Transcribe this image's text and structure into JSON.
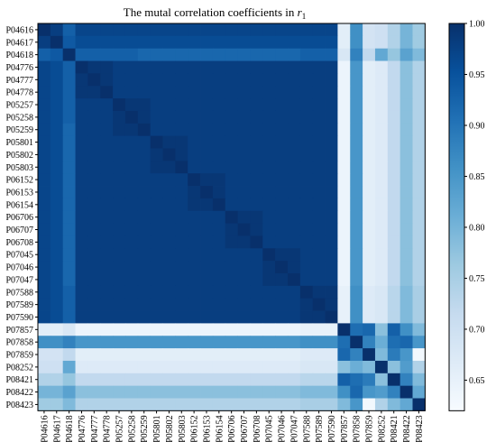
{
  "chart_data": {
    "type": "heatmap",
    "title": "The mutal correlation coefficients in ",
    "title_math": "r",
    "title_sub": "1",
    "labels": [
      "P04616",
      "P04617",
      "P04618",
      "P04776",
      "P04777",
      "P04778",
      "P05257",
      "P05258",
      "P05259",
      "P05801",
      "P05802",
      "P05803",
      "P06152",
      "P06153",
      "P06154",
      "P06706",
      "P06707",
      "P06708",
      "P07045",
      "P07046",
      "P07047",
      "P07588",
      "P07589",
      "P07590",
      "P07857",
      "P07858",
      "P07859",
      "P08252",
      "P08421",
      "P08422",
      "P08423"
    ],
    "zlim": [
      0.62,
      1.0
    ],
    "colorbar_ticks": [
      0.65,
      0.7,
      0.75,
      0.8,
      0.85,
      0.9,
      0.95,
      1.0
    ],
    "colorbar_tick_labels": [
      "0.65",
      "0.70",
      "0.75",
      "0.80",
      "0.85",
      "0.90",
      "0.95",
      "1.00"
    ],
    "colormap": [
      "#f7fbff",
      "#deebf7",
      "#c6dbef",
      "#9ecae1",
      "#6baed6",
      "#4292c6",
      "#2171b5",
      "#08519c",
      "#08306b"
    ],
    "values": [
      [
        1.0,
        0.98,
        0.93,
        0.97,
        0.97,
        0.97,
        0.97,
        0.97,
        0.97,
        0.97,
        0.97,
        0.97,
        0.97,
        0.97,
        0.97,
        0.97,
        0.97,
        0.97,
        0.97,
        0.97,
        0.97,
        0.97,
        0.97,
        0.97,
        0.66,
        0.86,
        0.69,
        0.7,
        0.74,
        0.8,
        0.76
      ],
      [
        0.98,
        1.0,
        0.94,
        0.96,
        0.96,
        0.96,
        0.96,
        0.96,
        0.96,
        0.96,
        0.96,
        0.96,
        0.96,
        0.96,
        0.96,
        0.96,
        0.96,
        0.96,
        0.96,
        0.96,
        0.96,
        0.96,
        0.96,
        0.96,
        0.66,
        0.86,
        0.69,
        0.7,
        0.74,
        0.8,
        0.76
      ],
      [
        0.93,
        0.94,
        1.0,
        0.93,
        0.93,
        0.93,
        0.93,
        0.93,
        0.92,
        0.92,
        0.92,
        0.92,
        0.92,
        0.92,
        0.92,
        0.92,
        0.92,
        0.92,
        0.92,
        0.92,
        0.92,
        0.93,
        0.93,
        0.93,
        0.68,
        0.88,
        0.72,
        0.82,
        0.77,
        0.83,
        0.79
      ],
      [
        0.97,
        0.96,
        0.93,
        1.0,
        0.99,
        0.99,
        0.98,
        0.98,
        0.98,
        0.98,
        0.98,
        0.98,
        0.98,
        0.98,
        0.98,
        0.98,
        0.98,
        0.98,
        0.98,
        0.98,
        0.98,
        0.98,
        0.98,
        0.98,
        0.64,
        0.85,
        0.66,
        0.67,
        0.72,
        0.78,
        0.74
      ],
      [
        0.97,
        0.96,
        0.93,
        0.99,
        1.0,
        0.99,
        0.98,
        0.98,
        0.98,
        0.98,
        0.98,
        0.98,
        0.98,
        0.98,
        0.98,
        0.98,
        0.98,
        0.98,
        0.98,
        0.98,
        0.98,
        0.98,
        0.98,
        0.98,
        0.64,
        0.85,
        0.66,
        0.67,
        0.72,
        0.78,
        0.74
      ],
      [
        0.97,
        0.96,
        0.93,
        0.99,
        0.99,
        1.0,
        0.98,
        0.98,
        0.98,
        0.98,
        0.98,
        0.98,
        0.98,
        0.98,
        0.98,
        0.98,
        0.98,
        0.98,
        0.98,
        0.98,
        0.98,
        0.98,
        0.98,
        0.98,
        0.64,
        0.85,
        0.66,
        0.67,
        0.72,
        0.78,
        0.74
      ],
      [
        0.97,
        0.96,
        0.93,
        0.98,
        0.98,
        0.98,
        1.0,
        0.99,
        0.99,
        0.98,
        0.98,
        0.98,
        0.98,
        0.98,
        0.98,
        0.98,
        0.98,
        0.98,
        0.98,
        0.98,
        0.98,
        0.98,
        0.98,
        0.98,
        0.64,
        0.85,
        0.66,
        0.67,
        0.72,
        0.78,
        0.74
      ],
      [
        0.97,
        0.96,
        0.93,
        0.98,
        0.98,
        0.98,
        0.99,
        1.0,
        0.99,
        0.98,
        0.98,
        0.98,
        0.98,
        0.98,
        0.98,
        0.98,
        0.98,
        0.98,
        0.98,
        0.98,
        0.98,
        0.98,
        0.98,
        0.98,
        0.64,
        0.85,
        0.66,
        0.67,
        0.72,
        0.78,
        0.74
      ],
      [
        0.97,
        0.96,
        0.92,
        0.98,
        0.98,
        0.98,
        0.99,
        0.99,
        1.0,
        0.98,
        0.98,
        0.98,
        0.98,
        0.98,
        0.98,
        0.98,
        0.98,
        0.98,
        0.98,
        0.98,
        0.98,
        0.98,
        0.98,
        0.98,
        0.64,
        0.85,
        0.66,
        0.67,
        0.72,
        0.78,
        0.74
      ],
      [
        0.97,
        0.96,
        0.92,
        0.98,
        0.98,
        0.98,
        0.98,
        0.98,
        0.98,
        1.0,
        0.99,
        0.99,
        0.98,
        0.98,
        0.98,
        0.98,
        0.98,
        0.98,
        0.98,
        0.98,
        0.98,
        0.98,
        0.98,
        0.98,
        0.64,
        0.85,
        0.66,
        0.67,
        0.72,
        0.78,
        0.74
      ],
      [
        0.97,
        0.96,
        0.92,
        0.98,
        0.98,
        0.98,
        0.98,
        0.98,
        0.98,
        0.99,
        1.0,
        0.99,
        0.98,
        0.98,
        0.98,
        0.98,
        0.98,
        0.98,
        0.98,
        0.98,
        0.98,
        0.98,
        0.98,
        0.98,
        0.64,
        0.85,
        0.66,
        0.67,
        0.72,
        0.78,
        0.74
      ],
      [
        0.97,
        0.96,
        0.92,
        0.98,
        0.98,
        0.98,
        0.98,
        0.98,
        0.98,
        0.99,
        0.99,
        1.0,
        0.98,
        0.98,
        0.98,
        0.98,
        0.98,
        0.98,
        0.98,
        0.98,
        0.98,
        0.98,
        0.98,
        0.98,
        0.64,
        0.85,
        0.66,
        0.67,
        0.72,
        0.78,
        0.74
      ],
      [
        0.97,
        0.96,
        0.92,
        0.98,
        0.98,
        0.98,
        0.98,
        0.98,
        0.98,
        0.98,
        0.98,
        0.98,
        1.0,
        0.99,
        0.99,
        0.98,
        0.98,
        0.98,
        0.98,
        0.98,
        0.98,
        0.98,
        0.98,
        0.98,
        0.64,
        0.85,
        0.66,
        0.67,
        0.72,
        0.78,
        0.74
      ],
      [
        0.97,
        0.96,
        0.92,
        0.98,
        0.98,
        0.98,
        0.98,
        0.98,
        0.98,
        0.98,
        0.98,
        0.98,
        0.99,
        1.0,
        0.99,
        0.98,
        0.98,
        0.98,
        0.98,
        0.98,
        0.98,
        0.98,
        0.98,
        0.98,
        0.64,
        0.85,
        0.66,
        0.67,
        0.72,
        0.78,
        0.74
      ],
      [
        0.97,
        0.96,
        0.92,
        0.98,
        0.98,
        0.98,
        0.98,
        0.98,
        0.98,
        0.98,
        0.98,
        0.98,
        0.99,
        0.99,
        1.0,
        0.98,
        0.98,
        0.98,
        0.98,
        0.98,
        0.98,
        0.98,
        0.98,
        0.98,
        0.64,
        0.85,
        0.66,
        0.67,
        0.72,
        0.78,
        0.74
      ],
      [
        0.97,
        0.96,
        0.92,
        0.98,
        0.98,
        0.98,
        0.98,
        0.98,
        0.98,
        0.98,
        0.98,
        0.98,
        0.98,
        0.98,
        0.98,
        1.0,
        0.99,
        0.99,
        0.98,
        0.98,
        0.98,
        0.98,
        0.98,
        0.98,
        0.64,
        0.85,
        0.66,
        0.67,
        0.72,
        0.78,
        0.74
      ],
      [
        0.97,
        0.96,
        0.92,
        0.98,
        0.98,
        0.98,
        0.98,
        0.98,
        0.98,
        0.98,
        0.98,
        0.98,
        0.98,
        0.98,
        0.98,
        0.99,
        1.0,
        0.99,
        0.98,
        0.98,
        0.98,
        0.98,
        0.98,
        0.98,
        0.64,
        0.85,
        0.66,
        0.67,
        0.72,
        0.78,
        0.74
      ],
      [
        0.97,
        0.96,
        0.92,
        0.98,
        0.98,
        0.98,
        0.98,
        0.98,
        0.98,
        0.98,
        0.98,
        0.98,
        0.98,
        0.98,
        0.98,
        0.99,
        0.99,
        1.0,
        0.98,
        0.98,
        0.98,
        0.98,
        0.98,
        0.98,
        0.64,
        0.85,
        0.66,
        0.67,
        0.72,
        0.78,
        0.74
      ],
      [
        0.97,
        0.96,
        0.92,
        0.98,
        0.98,
        0.98,
        0.98,
        0.98,
        0.98,
        0.98,
        0.98,
        0.98,
        0.98,
        0.98,
        0.98,
        0.98,
        0.98,
        0.98,
        1.0,
        0.99,
        0.99,
        0.98,
        0.98,
        0.98,
        0.64,
        0.85,
        0.66,
        0.67,
        0.72,
        0.78,
        0.74
      ],
      [
        0.97,
        0.96,
        0.92,
        0.98,
        0.98,
        0.98,
        0.98,
        0.98,
        0.98,
        0.98,
        0.98,
        0.98,
        0.98,
        0.98,
        0.98,
        0.98,
        0.98,
        0.98,
        0.99,
        1.0,
        0.99,
        0.98,
        0.98,
        0.98,
        0.64,
        0.85,
        0.66,
        0.67,
        0.72,
        0.78,
        0.74
      ],
      [
        0.97,
        0.96,
        0.92,
        0.98,
        0.98,
        0.98,
        0.98,
        0.98,
        0.98,
        0.98,
        0.98,
        0.98,
        0.98,
        0.98,
        0.98,
        0.98,
        0.98,
        0.98,
        0.99,
        0.99,
        1.0,
        0.98,
        0.98,
        0.98,
        0.64,
        0.85,
        0.66,
        0.67,
        0.72,
        0.78,
        0.74
      ],
      [
        0.97,
        0.96,
        0.93,
        0.98,
        0.98,
        0.98,
        0.98,
        0.98,
        0.98,
        0.98,
        0.98,
        0.98,
        0.98,
        0.98,
        0.98,
        0.98,
        0.98,
        0.98,
        0.98,
        0.98,
        0.98,
        1.0,
        0.99,
        0.99,
        0.65,
        0.86,
        0.67,
        0.68,
        0.73,
        0.79,
        0.75
      ],
      [
        0.97,
        0.96,
        0.93,
        0.98,
        0.98,
        0.98,
        0.98,
        0.98,
        0.98,
        0.98,
        0.98,
        0.98,
        0.98,
        0.98,
        0.98,
        0.98,
        0.98,
        0.98,
        0.98,
        0.98,
        0.98,
        0.99,
        1.0,
        0.99,
        0.65,
        0.86,
        0.67,
        0.68,
        0.73,
        0.79,
        0.75
      ],
      [
        0.97,
        0.96,
        0.93,
        0.98,
        0.98,
        0.98,
        0.98,
        0.98,
        0.98,
        0.98,
        0.98,
        0.98,
        0.98,
        0.98,
        0.98,
        0.98,
        0.98,
        0.98,
        0.98,
        0.98,
        0.98,
        0.99,
        0.99,
        1.0,
        0.65,
        0.86,
        0.67,
        0.68,
        0.73,
        0.79,
        0.75
      ],
      [
        0.66,
        0.66,
        0.68,
        0.64,
        0.64,
        0.64,
        0.64,
        0.64,
        0.64,
        0.64,
        0.64,
        0.64,
        0.64,
        0.64,
        0.64,
        0.64,
        0.64,
        0.64,
        0.64,
        0.64,
        0.64,
        0.65,
        0.65,
        0.65,
        1.0,
        0.91,
        0.92,
        0.78,
        0.93,
        0.86,
        0.79
      ],
      [
        0.86,
        0.86,
        0.88,
        0.85,
        0.85,
        0.85,
        0.85,
        0.85,
        0.85,
        0.85,
        0.85,
        0.85,
        0.85,
        0.85,
        0.85,
        0.85,
        0.85,
        0.85,
        0.85,
        0.85,
        0.85,
        0.86,
        0.86,
        0.86,
        0.91,
        1.0,
        0.88,
        0.81,
        0.91,
        0.92,
        0.85
      ],
      [
        0.69,
        0.69,
        0.72,
        0.66,
        0.66,
        0.66,
        0.66,
        0.66,
        0.66,
        0.66,
        0.66,
        0.66,
        0.66,
        0.66,
        0.66,
        0.66,
        0.66,
        0.66,
        0.66,
        0.66,
        0.66,
        0.67,
        0.67,
        0.67,
        0.92,
        0.88,
        1.0,
        0.79,
        0.89,
        0.85,
        0.63
      ],
      [
        0.7,
        0.7,
        0.82,
        0.67,
        0.67,
        0.67,
        0.67,
        0.67,
        0.67,
        0.67,
        0.67,
        0.67,
        0.67,
        0.67,
        0.67,
        0.67,
        0.67,
        0.67,
        0.67,
        0.67,
        0.67,
        0.68,
        0.68,
        0.68,
        0.78,
        0.81,
        0.79,
        1.0,
        0.78,
        0.84,
        0.74
      ],
      [
        0.74,
        0.74,
        0.77,
        0.72,
        0.72,
        0.72,
        0.72,
        0.72,
        0.72,
        0.72,
        0.72,
        0.72,
        0.72,
        0.72,
        0.72,
        0.72,
        0.72,
        0.72,
        0.72,
        0.72,
        0.72,
        0.73,
        0.73,
        0.73,
        0.93,
        0.91,
        0.89,
        0.78,
        1.0,
        0.88,
        0.79
      ],
      [
        0.8,
        0.8,
        0.83,
        0.78,
        0.78,
        0.78,
        0.78,
        0.78,
        0.78,
        0.78,
        0.78,
        0.78,
        0.78,
        0.78,
        0.78,
        0.78,
        0.78,
        0.78,
        0.78,
        0.78,
        0.78,
        0.79,
        0.79,
        0.79,
        0.86,
        0.92,
        0.85,
        0.84,
        0.88,
        1.0,
        0.82
      ],
      [
        0.76,
        0.76,
        0.79,
        0.74,
        0.74,
        0.74,
        0.74,
        0.74,
        0.74,
        0.74,
        0.74,
        0.74,
        0.74,
        0.74,
        0.74,
        0.74,
        0.74,
        0.74,
        0.74,
        0.74,
        0.74,
        0.75,
        0.75,
        0.75,
        0.79,
        0.85,
        0.63,
        0.74,
        0.79,
        0.82,
        1.0
      ]
    ]
  }
}
